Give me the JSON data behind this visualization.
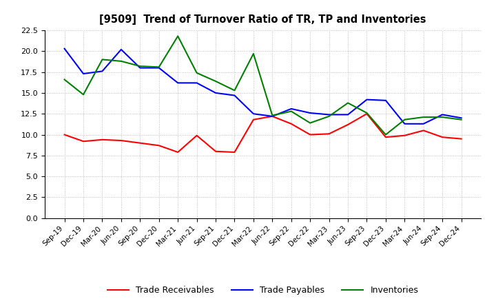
{
  "title": "[9509]  Trend of Turnover Ratio of TR, TP and Inventories",
  "x_labels": [
    "Sep-19",
    "Dec-19",
    "Mar-20",
    "Jun-20",
    "Sep-20",
    "Dec-20",
    "Mar-21",
    "Jun-21",
    "Sep-21",
    "Dec-21",
    "Mar-22",
    "Jun-22",
    "Sep-22",
    "Dec-22",
    "Mar-23",
    "Jun-23",
    "Sep-23",
    "Dec-23",
    "Mar-24",
    "Jun-24",
    "Sep-24",
    "Dec-24"
  ],
  "trade_receivables": [
    10.0,
    9.2,
    9.4,
    9.3,
    9.0,
    8.7,
    7.9,
    9.9,
    8.0,
    7.9,
    11.8,
    12.2,
    11.3,
    10.0,
    10.1,
    11.2,
    12.5,
    9.7,
    9.9,
    10.5,
    9.7,
    9.5
  ],
  "trade_payables": [
    20.3,
    17.3,
    17.6,
    20.2,
    18.0,
    18.0,
    16.2,
    16.2,
    15.0,
    14.7,
    12.5,
    12.2,
    13.1,
    12.6,
    12.4,
    12.4,
    14.2,
    14.1,
    11.3,
    11.3,
    12.4,
    12.0
  ],
  "inventories": [
    16.6,
    14.8,
    19.0,
    18.8,
    18.2,
    18.1,
    21.8,
    17.4,
    16.4,
    15.3,
    19.7,
    12.3,
    12.8,
    11.4,
    12.2,
    13.8,
    12.6,
    10.0,
    11.8,
    12.1,
    12.1,
    11.8
  ],
  "ylim": [
    0,
    22.5
  ],
  "yticks": [
    0.0,
    2.5,
    5.0,
    7.5,
    10.0,
    12.5,
    15.0,
    17.5,
    20.0,
    22.5
  ],
  "line_color_tr": "#ff0000",
  "line_color_tp": "#0000ff",
  "line_color_inv": "#008000",
  "legend_labels": [
    "Trade Receivables",
    "Trade Payables",
    "Inventories"
  ],
  "background_color": "#ffffff",
  "grid_color": "#bbbbbb"
}
